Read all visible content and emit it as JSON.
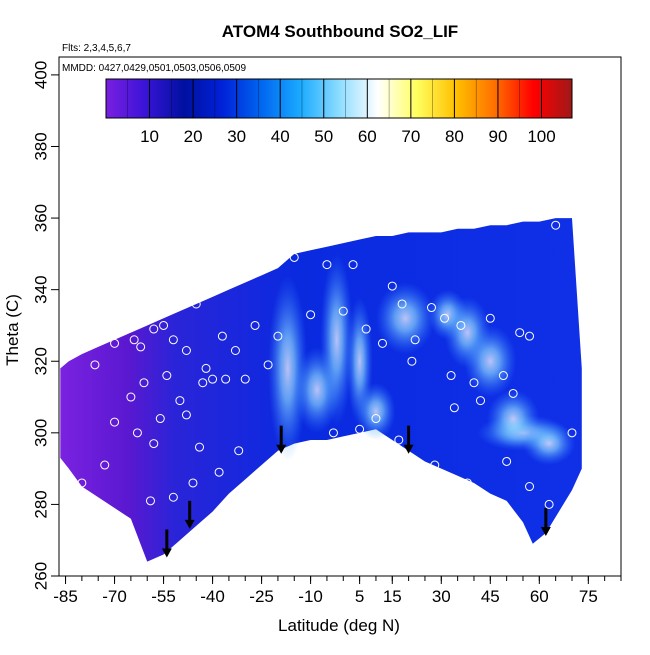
{
  "chart_data": {
    "type": "heatmap",
    "title": "ATOM4 Southbound SO2_LIF",
    "annotations": {
      "flights": "Flts: 2,3,4,5,6,7",
      "dates": "MMDD: 0427,0429,0501,0503,0506,0509"
    },
    "xlabel": "Latitude (deg N)",
    "ylabel": "Theta (C)",
    "xlim": [
      -87,
      85
    ],
    "ylim": [
      260,
      405
    ],
    "x_ticks": [
      -85,
      -70,
      -55,
      -40,
      -25,
      -10,
      5,
      15,
      30,
      45,
      60,
      75
    ],
    "x_tick_labels": [
      "-85",
      "-70",
      "-55",
      "-40",
      "-25",
      "-10",
      "5",
      "15",
      "30",
      "45",
      "60",
      "75"
    ],
    "x_minor_tick_step": 5,
    "y_ticks": [
      260,
      280,
      300,
      320,
      340,
      360,
      380,
      400
    ],
    "y_tick_labels": [
      "260",
      "280",
      "300",
      "320",
      "340",
      "360",
      "380",
      "400"
    ],
    "colorbar": {
      "range": [
        0,
        107
      ],
      "ticks": [
        10,
        20,
        30,
        40,
        50,
        60,
        70,
        80,
        90,
        100
      ],
      "tick_labels": [
        "10",
        "20",
        "30",
        "40",
        "50",
        "60",
        "70",
        "80",
        "90",
        "100"
      ],
      "colors": [
        "#7a1fe0",
        "#3a14d8",
        "#0010a0",
        "#0022d8",
        "#0066f0",
        "#1aaaff",
        "#8cdcff",
        "#ffffff",
        "#ffff60",
        "#ffc000",
        "#ff7000",
        "#ff0000",
        "#a01818"
      ]
    },
    "field_boundary": {
      "latitude": [
        -86.6,
        -84,
        -80,
        -75,
        -70,
        -65,
        -60,
        -55,
        -50,
        -45,
        -40,
        -35,
        -30,
        -25,
        -20,
        -15,
        -10,
        -5,
        0,
        5,
        10,
        15,
        20,
        25,
        30,
        35,
        40,
        45,
        50,
        55,
        60,
        65,
        70,
        73,
        73,
        70,
        66,
        62,
        58,
        55,
        50,
        45,
        40,
        35,
        30,
        25,
        20,
        15,
        10,
        5,
        0,
        -5,
        -10,
        -15,
        -20,
        -25,
        -30,
        -35,
        -40,
        -45,
        -50,
        -55,
        -60,
        -65,
        -70,
        -75,
        -80,
        -84,
        -86.6
      ],
      "theta_top": [
        318,
        320,
        322,
        324,
        326,
        328,
        330,
        332,
        334,
        336,
        338,
        340,
        342,
        344,
        346,
        350,
        351,
        352,
        353,
        354,
        355,
        355,
        356,
        356,
        356,
        357,
        357,
        358,
        358,
        359,
        359,
        360,
        360,
        318
      ],
      "theta_bottom": [
        290,
        284,
        278,
        272,
        269,
        275,
        281,
        283,
        286,
        288,
        290,
        292,
        295,
        298,
        301,
        300,
        299,
        298,
        298,
        297,
        295,
        291,
        287,
        283,
        278,
        274,
        270,
        266,
        264,
        276,
        279,
        282,
        285,
        290,
        293,
        296,
        299,
        301
      ]
    },
    "minimum_theta_markers_latitude": [
      -54,
      -47,
      -19,
      20,
      62
    ],
    "sample_points": [
      {
        "lat": -76,
        "theta": 319
      },
      {
        "lat": -70,
        "theta": 325
      },
      {
        "lat": -66,
        "theta": 331
      },
      {
        "lat": -64,
        "theta": 326
      },
      {
        "lat": -62,
        "theta": 324
      },
      {
        "lat": -58,
        "theta": 329
      },
      {
        "lat": -55,
        "theta": 330
      },
      {
        "lat": -52,
        "theta": 326
      },
      {
        "lat": -48,
        "theta": 323
      },
      {
        "lat": -45,
        "theta": 336
      },
      {
        "lat": -42,
        "theta": 318
      },
      {
        "lat": -40,
        "theta": 315
      },
      {
        "lat": -37,
        "theta": 327
      },
      {
        "lat": -33,
        "theta": 323
      },
      {
        "lat": -30,
        "theta": 315
      },
      {
        "lat": -27,
        "theta": 330
      },
      {
        "lat": -23,
        "theta": 319
      },
      {
        "lat": -20,
        "theta": 327
      },
      {
        "lat": -15,
        "theta": 349
      },
      {
        "lat": -10,
        "theta": 333
      },
      {
        "lat": -5,
        "theta": 347
      },
      {
        "lat": 0,
        "theta": 334
      },
      {
        "lat": 3,
        "theta": 347
      },
      {
        "lat": 7,
        "theta": 329
      },
      {
        "lat": 12,
        "theta": 325
      },
      {
        "lat": 15,
        "theta": 341
      },
      {
        "lat": 18,
        "theta": 336
      },
      {
        "lat": 22,
        "theta": 326
      },
      {
        "lat": 27,
        "theta": 335
      },
      {
        "lat": 31,
        "theta": 332
      },
      {
        "lat": 36,
        "theta": 330
      },
      {
        "lat": 40,
        "theta": 314
      },
      {
        "lat": 45,
        "theta": 332
      },
      {
        "lat": 49,
        "theta": 316
      },
      {
        "lat": 54,
        "theta": 328
      },
      {
        "lat": 57,
        "theta": 327
      },
      {
        "lat": 65,
        "theta": 358
      },
      {
        "lat": 70,
        "theta": 300
      },
      {
        "lat": -80,
        "theta": 286
      },
      {
        "lat": -73,
        "theta": 291
      },
      {
        "lat": -68,
        "theta": 276
      },
      {
        "lat": -63,
        "theta": 300
      },
      {
        "lat": -59,
        "theta": 281
      },
      {
        "lat": -56,
        "theta": 304
      },
      {
        "lat": -52,
        "theta": 282
      },
      {
        "lat": -50,
        "theta": 309
      },
      {
        "lat": -46,
        "theta": 286
      },
      {
        "lat": -43,
        "theta": 314
      },
      {
        "lat": -38,
        "theta": 289
      },
      {
        "lat": -32,
        "theta": 295
      },
      {
        "lat": -3,
        "theta": 300
      },
      {
        "lat": 5,
        "theta": 301
      },
      {
        "lat": 10,
        "theta": 304
      },
      {
        "lat": 17,
        "theta": 298
      },
      {
        "lat": 28,
        "theta": 291
      },
      {
        "lat": 34,
        "theta": 307
      },
      {
        "lat": 38,
        "theta": 286
      },
      {
        "lat": 44,
        "theta": 280
      },
      {
        "lat": 50,
        "theta": 292
      },
      {
        "lat": 57,
        "theta": 285
      },
      {
        "lat": 63,
        "theta": 280
      },
      {
        "lat": 70,
        "theta": 280
      },
      {
        "lat": -70,
        "theta": 303
      },
      {
        "lat": -65,
        "theta": 310
      },
      {
        "lat": -61,
        "theta": 314
      },
      {
        "lat": -58,
        "theta": 297
      },
      {
        "lat": -54,
        "theta": 316
      },
      {
        "lat": -48,
        "theta": 305
      },
      {
        "lat": -44,
        "theta": 296
      },
      {
        "lat": -36,
        "theta": 315
      },
      {
        "lat": 21,
        "theta": 320
      },
      {
        "lat": 33,
        "theta": 316
      },
      {
        "lat": 42,
        "theta": 309
      },
      {
        "lat": 52,
        "theta": 311
      }
    ]
  }
}
